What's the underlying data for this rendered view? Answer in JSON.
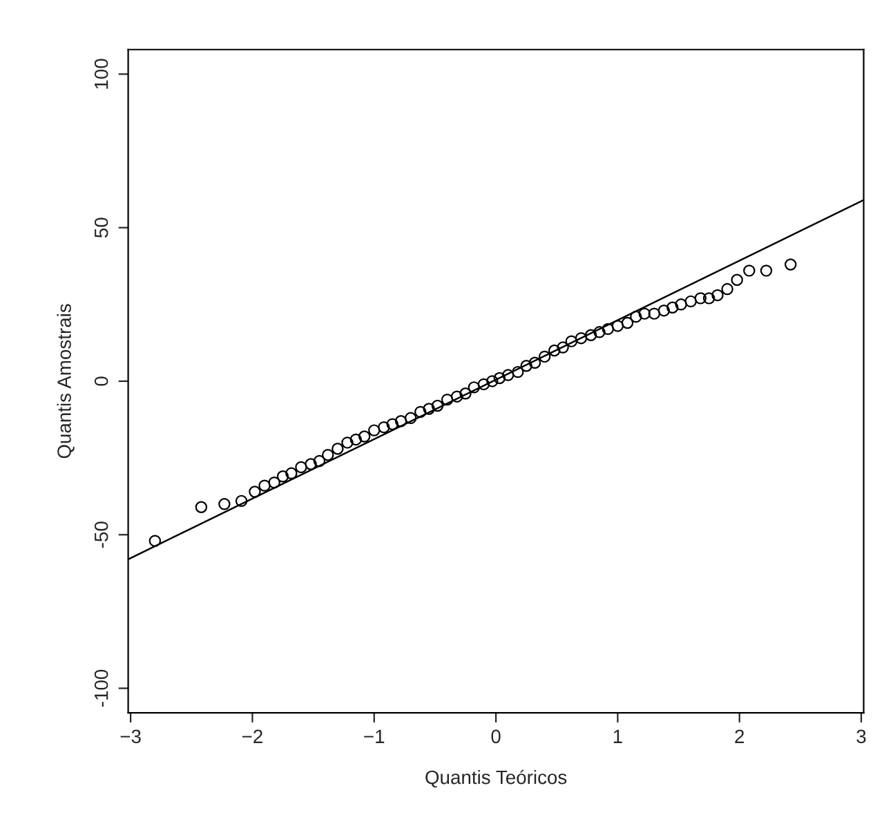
{
  "chart_data": {
    "type": "scatter",
    "xlabel": "Quantis Teóricos",
    "ylabel": "Quantis Amostrais",
    "marker": "circle",
    "grid": false,
    "legend": false,
    "xlim": [
      -3.02,
      3.02
    ],
    "ylim": [
      -108,
      108
    ],
    "xticks": [
      {
        "value": -3,
        "label": "−3"
      },
      {
        "value": -2,
        "label": "−2"
      },
      {
        "value": -1,
        "label": "−1"
      },
      0,
      1,
      2,
      3
    ],
    "yticks": [
      {
        "value": -100,
        "label": "-100"
      },
      {
        "value": -50,
        "label": "-50"
      },
      0,
      50,
      100
    ],
    "series": [
      {
        "color": "#000000",
        "x": [
          -2.8,
          -2.42,
          -2.23,
          -2.09,
          -1.98,
          -1.9,
          -1.82,
          -1.75,
          -1.68,
          -1.6,
          -1.52,
          -1.45,
          -1.38,
          -1.3,
          -1.22,
          -1.15,
          -1.08,
          -1.0,
          -0.92,
          -0.85,
          -0.78,
          -0.7,
          -0.62,
          -0.55,
          -0.48,
          -0.4,
          -0.32,
          -0.25,
          -0.18,
          -0.1,
          -0.03,
          0.03,
          0.1,
          0.18,
          0.25,
          0.32,
          0.4,
          0.48,
          0.55,
          0.62,
          0.7,
          0.78,
          0.85,
          0.92,
          1.0,
          1.08,
          1.15,
          1.22,
          1.3,
          1.38,
          1.45,
          1.52,
          1.6,
          1.68,
          1.75,
          1.82,
          1.9,
          1.98,
          2.08,
          2.22,
          2.42
        ],
        "values": [
          -52,
          -41,
          -40,
          -39,
          -36,
          -34,
          -33,
          -31,
          -30,
          -28,
          -27,
          -26,
          -24,
          -22,
          -20,
          -19,
          -18,
          -16,
          -15,
          -14,
          -13,
          -12,
          -10,
          -9,
          -8,
          -6,
          -5,
          -4,
          -2,
          -1,
          0,
          1,
          2,
          3,
          5,
          6,
          8,
          10,
          11,
          13,
          14,
          15,
          16,
          17,
          18,
          19,
          21,
          22,
          22,
          23,
          24,
          25,
          26,
          27,
          27,
          28,
          30,
          33,
          36,
          36,
          38
        ]
      },
      {
        "type": "line",
        "color": "#000000",
        "line_style": "solid",
        "marker": "none",
        "x": [
          -3.02,
          3.02
        ],
        "values": [
          -58,
          59
        ]
      }
    ]
  }
}
